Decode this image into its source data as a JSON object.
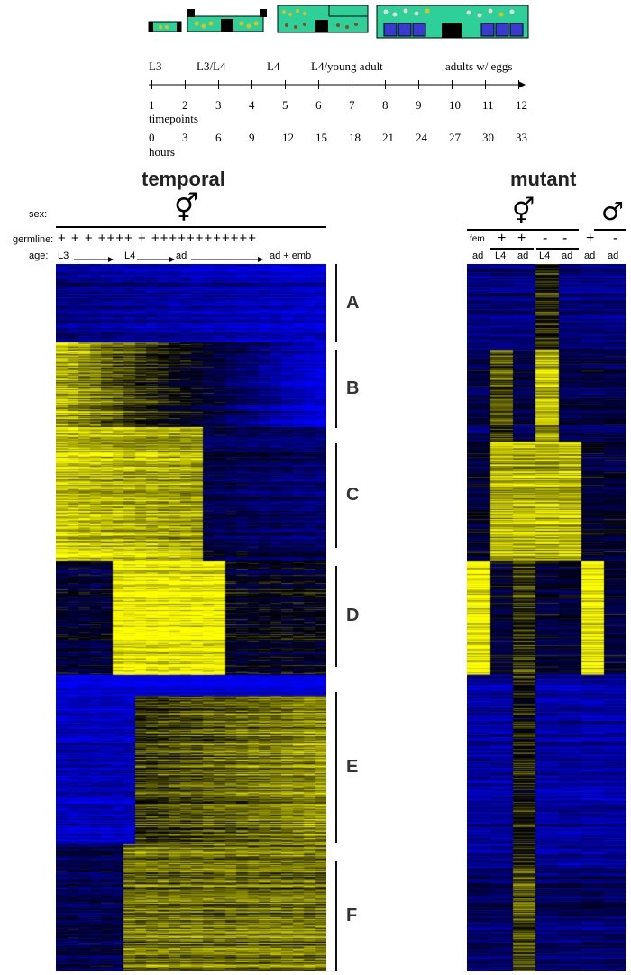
{
  "timeline": {
    "stages": [
      "L3",
      "L3/L4",
      "L4",
      "L4/young adult",
      "adults w/ eggs"
    ],
    "timepoints": [
      "1",
      "2",
      "3",
      "4",
      "5",
      "6",
      "7",
      "8",
      "9",
      "10",
      "11",
      "12"
    ],
    "timepoints_label": "timepoints",
    "hours": [
      "0",
      "3",
      "6",
      "9",
      "12",
      "15",
      "18",
      "21",
      "24",
      "27",
      "30",
      "33"
    ],
    "hours_label": "hours"
  },
  "temporal": {
    "title": "temporal",
    "sex_label": "sex:",
    "sex_symbol": "⚥",
    "germline_label": "germline:",
    "germline_signs": "+ + + ++++ + ++++++++++++",
    "age_label": "age:",
    "age_stages": [
      "L3",
      "L4",
      "ad",
      "ad + emb"
    ],
    "clusters": [
      "A",
      "B",
      "C",
      "D",
      "E",
      "F"
    ]
  },
  "mutant": {
    "title": "mutant",
    "herm_symbol": "⚥",
    "male_symbol": "♂",
    "fem_label": "fem",
    "germline_signs": [
      "+",
      "+",
      "-",
      "-",
      "+",
      "-"
    ],
    "age_labels": [
      "ad",
      "L4",
      "ad",
      "L4",
      "ad",
      "ad",
      "ad"
    ]
  },
  "colors": {
    "high": "#ffff00",
    "low": "#0000ff",
    "mid": "#000000"
  }
}
